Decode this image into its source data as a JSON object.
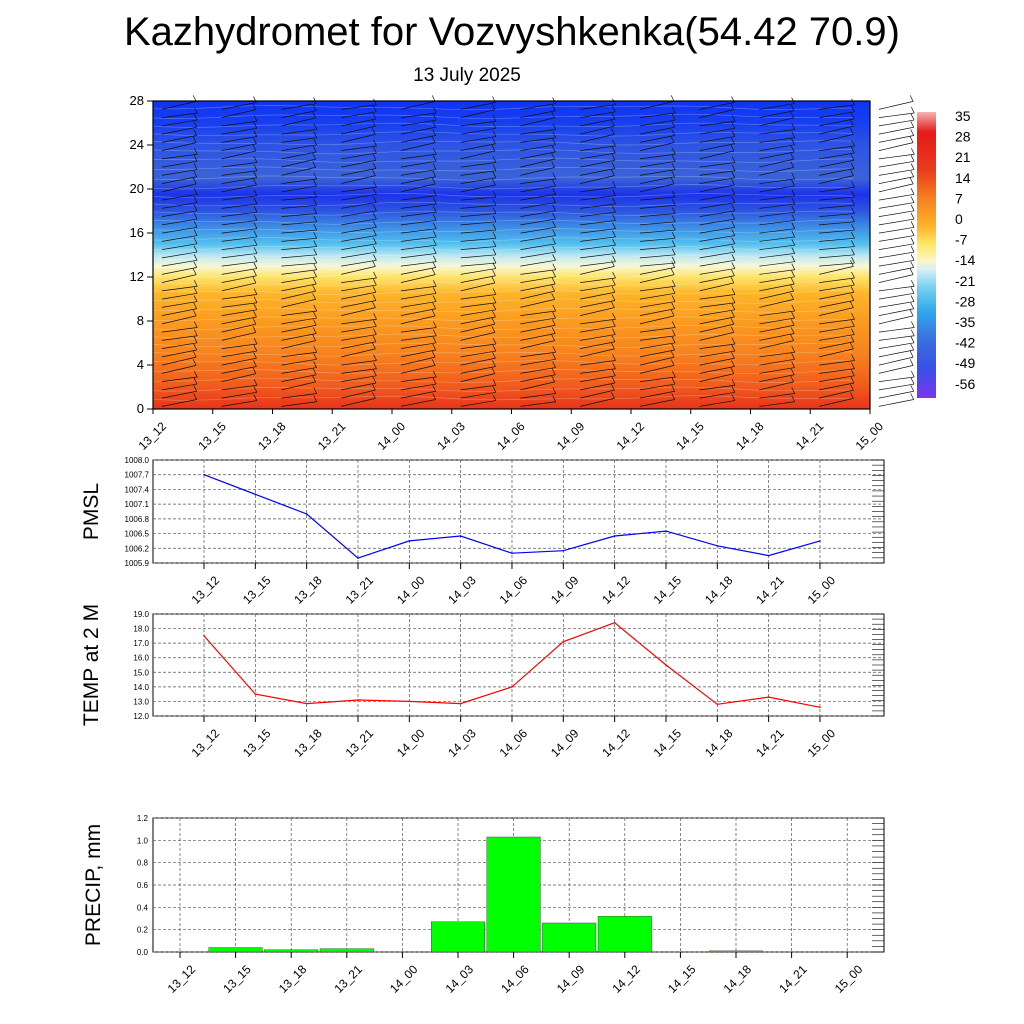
{
  "title": "Kazhydromet for Vozvyshkenka(54.42 70.9)",
  "date": "13 July 2025",
  "colorbar": {
    "labels": [
      "35",
      "28",
      "21",
      "14",
      "7",
      "0",
      "-7",
      "-14",
      "-21",
      "-28",
      "-35",
      "-42",
      "-49",
      "-56"
    ]
  },
  "chart_data": [
    {
      "type": "heatmap",
      "name": "Temperature cross-section with wind barbs",
      "categories": [
        "13_12",
        "13_15",
        "13_18",
        "13_21",
        "14_00",
        "14_03",
        "14_06",
        "14_09",
        "14_12",
        "14_15",
        "14_18",
        "14_21",
        "15_00"
      ],
      "y_ticks": [
        "0",
        "4",
        "8",
        "12",
        "16",
        "20",
        "24",
        "28"
      ],
      "ylim": [
        0,
        28
      ],
      "color_scale": [
        -56,
        35
      ],
      "gradient": [
        {
          "level": 0,
          "color": "#e8331c"
        },
        {
          "level": 2,
          "color": "#f05a1e"
        },
        {
          "level": 5,
          "color": "#f7821e"
        },
        {
          "level": 8,
          "color": "#fb9b20"
        },
        {
          "level": 10.5,
          "color": "#fdb52b"
        },
        {
          "level": 12,
          "color": "#fee46a"
        },
        {
          "level": 13,
          "color": "#f6f8d6"
        },
        {
          "level": 14,
          "color": "#b7e6f3"
        },
        {
          "level": 15,
          "color": "#53c0ee"
        },
        {
          "level": 16.5,
          "color": "#3d8ee4"
        },
        {
          "level": 18,
          "color": "#2d55e0"
        },
        {
          "level": 19.5,
          "color": "#1b33ea"
        },
        {
          "level": 21,
          "color": "#3b63d7"
        },
        {
          "level": 24,
          "color": "#2d53e4"
        },
        {
          "level": 26,
          "color": "#173fef"
        },
        {
          "level": 28,
          "color": "#0f34f4"
        }
      ]
    },
    {
      "type": "line",
      "ylabel": "PMSL",
      "categories": [
        "13_12",
        "13_15",
        "13_18",
        "13_21",
        "14_00",
        "14_03",
        "14_06",
        "14_09",
        "14_12",
        "14_15",
        "14_18",
        "14_21",
        "15_00"
      ],
      "values": [
        1007.7,
        1007.3,
        1006.9,
        1006.0,
        1006.35,
        1006.45,
        1006.1,
        1006.15,
        1006.45,
        1006.55,
        1006.25,
        1006.05,
        1006.35
      ],
      "ylim": [
        1005.9,
        1008.0
      ],
      "y_ticks": [
        "1008.0",
        "1007.7",
        "1007.4",
        "1007.1",
        "1006.8",
        "1006.5",
        "1006.2",
        "1005.9"
      ],
      "color": "#0000ff"
    },
    {
      "type": "line",
      "ylabel": "TEMP at 2 M",
      "categories": [
        "13_12",
        "13_15",
        "13_18",
        "13_21",
        "14_00",
        "14_03",
        "14_06",
        "14_09",
        "14_12",
        "14_15",
        "14_18",
        "14_21",
        "15_00"
      ],
      "values": [
        17.5,
        13.5,
        12.85,
        13.1,
        13.0,
        12.85,
        14.0,
        17.1,
        18.4,
        15.5,
        12.8,
        13.3,
        12.6
      ],
      "ylim": [
        12.0,
        19.0
      ],
      "y_ticks": [
        "19.0",
        "18.0",
        "17.0",
        "16.0",
        "15.0",
        "14.0",
        "13.0",
        "12.0"
      ],
      "color": "#ff0000"
    },
    {
      "type": "bar",
      "ylabel": "PRECIP, mm",
      "categories": [
        "13_12",
        "13_15",
        "13_18",
        "13_21",
        "14_00",
        "14_03",
        "14_06",
        "14_09",
        "14_12",
        "14_15",
        "14_18",
        "14_21",
        "15_00"
      ],
      "values": [
        0.0,
        0.04,
        0.02,
        0.03,
        0.0,
        0.27,
        1.03,
        0.26,
        0.32,
        0.0,
        0.01,
        0.0,
        0.0
      ],
      "ylim": [
        0.0,
        1.2
      ],
      "y_ticks": [
        "1.2",
        "1.0",
        "0.8",
        "0.6",
        "0.4",
        "0.2",
        "0.0"
      ],
      "color": "#00ff00"
    }
  ]
}
